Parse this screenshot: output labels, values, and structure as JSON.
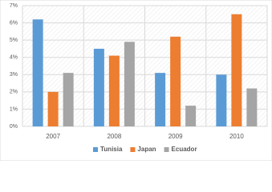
{
  "chart_data": {
    "type": "bar",
    "categories": [
      "2007",
      "2008",
      "2009",
      "2010"
    ],
    "series": [
      {
        "name": "Tunisia",
        "color": "#5b9bd5",
        "values": [
          6.2,
          4.5,
          3.1,
          3.0
        ]
      },
      {
        "name": "Japan",
        "color": "#ed7d31",
        "values": [
          2.0,
          4.1,
          5.2,
          6.5
        ]
      },
      {
        "name": "Ecuador",
        "color": "#a5a5a5",
        "values": [
          3.1,
          4.9,
          1.2,
          2.2
        ]
      }
    ],
    "ylim": [
      0,
      7
    ],
    "yticks": [
      {
        "value": 0,
        "label": "0%"
      },
      {
        "value": 1,
        "label": "1%"
      },
      {
        "value": 2,
        "label": "2%"
      },
      {
        "value": 3,
        "label": "3%"
      },
      {
        "value": 4,
        "label": "4%"
      },
      {
        "value": 5,
        "label": "5%"
      },
      {
        "value": 6,
        "label": "6%"
      },
      {
        "value": 7,
        "label": "7%"
      }
    ],
    "grid": true,
    "legend": "bottom"
  }
}
